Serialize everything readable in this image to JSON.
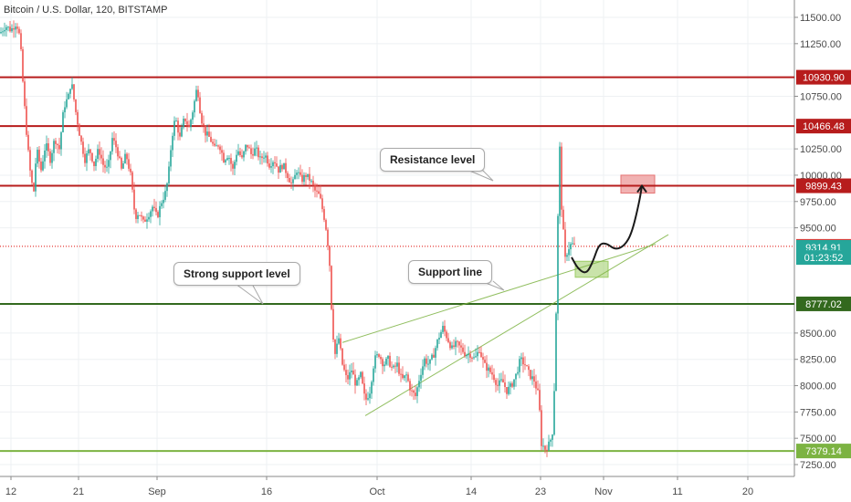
{
  "chart_title": "Bitcoin / U.S. Dollar, 120, BITSTAMP",
  "chart_data": {
    "type": "candlestick",
    "x_ticks": [
      "12",
      "21",
      "Sep",
      "16",
      "Oct",
      "14",
      "23",
      "Nov",
      "11",
      "20"
    ],
    "y_ticks": [
      "11500.00",
      "11250.00",
      "10750.00",
      "10250.00",
      "10000.00",
      "9750.00",
      "9500.00",
      "8500.00",
      "8250.00",
      "8000.00",
      "7750.00",
      "7500.00",
      "7250.00"
    ],
    "ylim": [
      7120,
      11720
    ],
    "horizontal_levels": [
      {
        "value": 10930.9,
        "label": "10930.90",
        "color": "#b71c1c"
      },
      {
        "value": 10466.48,
        "label": "10466.48",
        "color": "#b71c1c"
      },
      {
        "value": 9899.43,
        "label": "9899.43",
        "color": "#b71c1c"
      },
      {
        "value": 9323.9,
        "label": "9323.90",
        "color": "#e53935",
        "style": "dotted"
      },
      {
        "value": 8777.02,
        "label": "8777.02",
        "color": "#33691e"
      },
      {
        "value": 7379.14,
        "label": "7379.14",
        "color": "#7cb342"
      }
    ],
    "price_labels": [
      {
        "value": 9314.91,
        "label": "9314.91",
        "color": "#26a69a"
      },
      {
        "value": 9218,
        "label": "01:23:52",
        "color": "#26a69a"
      }
    ],
    "price_path": [
      [
        0,
        11350
      ],
      [
        6,
        11420
      ],
      [
        12,
        11380
      ],
      [
        18,
        11450
      ],
      [
        22,
        11300
      ],
      [
        26,
        10750
      ],
      [
        30,
        10300
      ],
      [
        34,
        9950
      ],
      [
        37,
        9850
      ],
      [
        40,
        10250
      ],
      [
        45,
        10050
      ],
      [
        50,
        10300
      ],
      [
        55,
        10150
      ],
      [
        60,
        10350
      ],
      [
        65,
        10250
      ],
      [
        70,
        10650
      ],
      [
        75,
        10750
      ],
      [
        78,
        10900
      ],
      [
        83,
        10600
      ],
      [
        88,
        10350
      ],
      [
        93,
        10150
      ],
      [
        98,
        10250
      ],
      [
        103,
        10100
      ],
      [
        108,
        10250
      ],
      [
        113,
        10100
      ],
      [
        118,
        10050
      ],
      [
        123,
        10350
      ],
      [
        128,
        10250
      ],
      [
        133,
        10050
      ],
      [
        138,
        10200
      ],
      [
        143,
        10000
      ],
      [
        148,
        9600
      ],
      [
        152,
        9650
      ],
      [
        157,
        9550
      ],
      [
        162,
        9620
      ],
      [
        167,
        9700
      ],
      [
        172,
        9600
      ],
      [
        177,
        9750
      ],
      [
        182,
        9850
      ],
      [
        185,
        10050
      ],
      [
        188,
        10350
      ],
      [
        192,
        10550
      ],
      [
        197,
        10350
      ],
      [
        202,
        10550
      ],
      [
        207,
        10450
      ],
      [
        212,
        10650
      ],
      [
        216,
        10850
      ],
      [
        220,
        10550
      ],
      [
        225,
        10400
      ],
      [
        230,
        10350
      ],
      [
        235,
        10250
      ],
      [
        240,
        10300
      ],
      [
        245,
        10150
      ],
      [
        250,
        10200
      ],
      [
        255,
        10050
      ],
      [
        260,
        10250
      ],
      [
        265,
        10150
      ],
      [
        270,
        10300
      ],
      [
        275,
        10200
      ],
      [
        280,
        10250
      ],
      [
        285,
        10150
      ],
      [
        290,
        10200
      ],
      [
        295,
        10100
      ],
      [
        300,
        10150
      ],
      [
        305,
        10050
      ],
      [
        310,
        10100
      ],
      [
        315,
        10000
      ],
      [
        320,
        9900
      ],
      [
        325,
        10050
      ],
      [
        330,
        9950
      ],
      [
        335,
        10000
      ],
      [
        340,
        9950
      ],
      [
        345,
        9850
      ],
      [
        350,
        9800
      ],
      [
        355,
        9600
      ],
      [
        358,
        9450
      ],
      [
        361,
        9150
      ],
      [
        364,
        8550
      ],
      [
        367,
        8300
      ],
      [
        371,
        8450
      ],
      [
        375,
        8200
      ],
      [
        380,
        8050
      ],
      [
        385,
        8150
      ],
      [
        390,
        8000
      ],
      [
        395,
        8100
      ],
      [
        400,
        7850
      ],
      [
        405,
        7950
      ],
      [
        410,
        8250
      ],
      [
        415,
        8300
      ],
      [
        420,
        8200
      ],
      [
        425,
        8250
      ],
      [
        430,
        8150
      ],
      [
        435,
        8200
      ],
      [
        440,
        8050
      ],
      [
        445,
        8100
      ],
      [
        450,
        7950
      ],
      [
        455,
        7900
      ],
      [
        460,
        8100
      ],
      [
        465,
        8250
      ],
      [
        470,
        8200
      ],
      [
        475,
        8300
      ],
      [
        480,
        8450
      ],
      [
        485,
        8550
      ],
      [
        490,
        8450
      ],
      [
        495,
        8350
      ],
      [
        500,
        8400
      ],
      [
        505,
        8350
      ],
      [
        510,
        8300
      ],
      [
        515,
        8300
      ],
      [
        520,
        8250
      ],
      [
        525,
        8350
      ],
      [
        530,
        8200
      ],
      [
        535,
        8150
      ],
      [
        540,
        8100
      ],
      [
        545,
        8000
      ],
      [
        550,
        8050
      ],
      [
        555,
        7950
      ],
      [
        560,
        8000
      ],
      [
        565,
        8100
      ],
      [
        570,
        8250
      ],
      [
        575,
        8200
      ],
      [
        580,
        8100
      ],
      [
        585,
        8050
      ],
      [
        590,
        7900
      ],
      [
        593,
        7450
      ],
      [
        597,
        7400
      ],
      [
        602,
        7450
      ],
      [
        606,
        7600
      ],
      [
        609,
        8700
      ],
      [
        611,
        9600
      ],
      [
        613,
        10250
      ],
      [
        615,
        9700
      ],
      [
        617,
        9450
      ],
      [
        619,
        9200
      ],
      [
        622,
        9300
      ],
      [
        626,
        9350
      ],
      [
        630,
        9314.91
      ]
    ],
    "arrow_path": [
      [
        626,
        9220
      ],
      [
        633,
        9110
      ],
      [
        642,
        9060
      ],
      [
        649,
        9170
      ],
      [
        656,
        9345
      ],
      [
        664,
        9355
      ],
      [
        674,
        9290
      ],
      [
        684,
        9330
      ],
      [
        692,
        9450
      ],
      [
        700,
        9740
      ],
      [
        703,
        9899.43
      ]
    ],
    "trend_lines": [
      {
        "from": [
          375,
          8410
        ],
        "to": [
          718,
          9345
        ]
      },
      {
        "from": [
          400,
          7715
        ],
        "to": [
          732,
          9435
        ]
      }
    ],
    "zones": [
      {
        "x_range": [
          680,
          717
        ],
        "y_range": [
          9830,
          10000
        ],
        "color": "#e57373"
      },
      {
        "x_range": [
          630,
          666
        ],
        "y_range": [
          9030,
          9182
        ],
        "color": "#9ccc65"
      }
    ]
  },
  "callouts": {
    "resistance": "Resistance level",
    "support_line": "Support line",
    "strong_support": "Strong support level"
  }
}
